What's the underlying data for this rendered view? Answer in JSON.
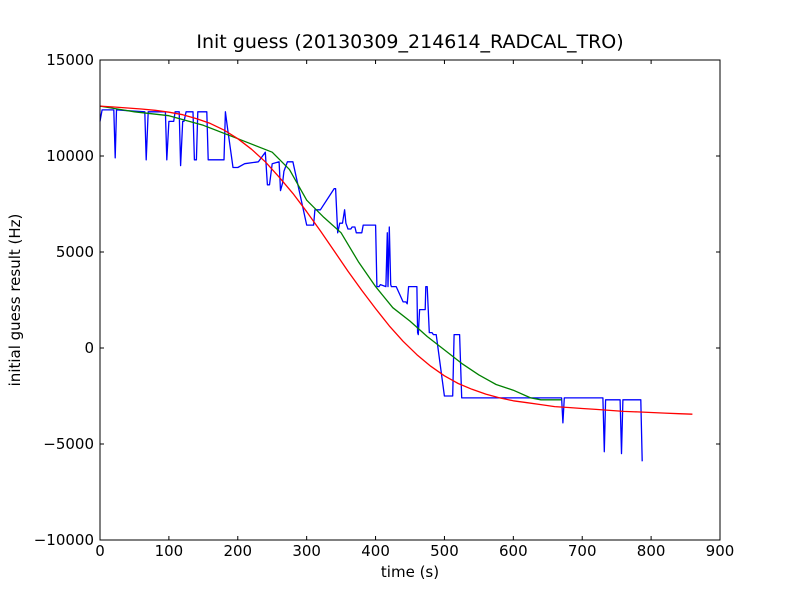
{
  "chart_data": {
    "type": "line",
    "title": "Init guess (20130309_214614_RADCAL_TRO)",
    "xlabel": "time (s)",
    "ylabel": "initial guess result (Hz)",
    "xlim": [
      0,
      900
    ],
    "ylim": [
      -10000,
      15000
    ],
    "x_ticks": [
      0,
      100,
      200,
      300,
      400,
      500,
      600,
      700,
      800,
      900
    ],
    "y_ticks": [
      -10000,
      -5000,
      0,
      5000,
      10000,
      15000
    ],
    "x_tick_labels": [
      "0",
      "100",
      "200",
      "300",
      "400",
      "500",
      "600",
      "700",
      "800",
      "900"
    ],
    "y_tick_labels": [
      "−10000",
      "−5000",
      "0",
      "5000",
      "10000",
      "15000"
    ],
    "grid": false,
    "legend": "none",
    "series": [
      {
        "color": "#0000ff",
        "x": [
          0,
          3,
          5,
          20,
          22,
          24,
          65,
          67,
          70,
          95,
          97,
          100,
          102,
          107,
          109,
          112,
          115,
          117,
          120,
          122,
          125,
          135,
          137,
          140,
          142,
          155,
          157,
          160,
          180,
          182,
          185,
          193,
          200,
          210,
          230,
          240,
          243,
          246,
          250,
          260,
          262,
          265,
          267,
          270,
          272,
          275,
          278,
          280,
          300,
          302,
          310,
          312,
          320,
          340,
          342,
          345,
          348,
          350,
          352,
          355,
          357,
          360,
          362,
          364,
          366,
          370,
          372,
          380,
          382,
          400,
          402,
          405,
          407,
          415,
          417,
          418,
          420,
          422,
          423,
          425,
          428,
          430,
          440,
          442,
          444,
          446,
          448,
          450,
          451,
          460,
          461,
          462,
          464,
          466,
          470,
          472,
          473,
          475,
          478,
          479,
          480,
          482,
          484,
          485,
          486,
          488,
          500,
          504,
          512,
          514,
          516,
          522,
          525,
          530,
          560,
          580,
          640,
          660,
          670,
          672,
          674,
          730,
          732,
          734,
          735,
          745,
          755,
          757,
          759,
          785,
          787
        ],
        "y": [
          11800,
          12400,
          12400,
          12400,
          9900,
          12400,
          12300,
          9800,
          12300,
          12300,
          9800,
          11800,
          11800,
          11800,
          12300,
          12300,
          12300,
          9500,
          11800,
          11800,
          12300,
          12300,
          9800,
          9800,
          12300,
          12300,
          9800,
          9800,
          9800,
          12300,
          11500,
          9400,
          9400,
          9600,
          9700,
          10200,
          8500,
          8500,
          9600,
          9700,
          8200,
          8600,
          9200,
          9500,
          9700,
          9700,
          9700,
          9700,
          6400,
          6400,
          6400,
          7200,
          7200,
          8300,
          8300,
          6000,
          6500,
          6500,
          6500,
          7200,
          6500,
          6200,
          6200,
          6200,
          6300,
          6300,
          6000,
          6000,
          6400,
          6400,
          3200,
          3200,
          3300,
          3200,
          6000,
          3200,
          6300,
          3300,
          3200,
          3200,
          3200,
          3200,
          2400,
          2400,
          2400,
          2300,
          3200,
          3200,
          3200,
          3200,
          800,
          700,
          2000,
          2000,
          2000,
          2000,
          3200,
          3200,
          800,
          800,
          800,
          800,
          700,
          700,
          700,
          700,
          -2500,
          -2500,
          -2500,
          700,
          700,
          700,
          -2600,
          -2600,
          -2600,
          -2600,
          -2600,
          -2600,
          -2600,
          -3900,
          -2600,
          -2600,
          -5400,
          -2700,
          -2700,
          -2700,
          -2700,
          -5500,
          -2700,
          -2700,
          -5900
        ]
      },
      {
        "color": "#008000",
        "x": [
          0,
          50,
          100,
          150,
          200,
          250,
          275,
          300,
          325,
          350,
          375,
          400,
          425,
          450,
          475,
          500,
          525,
          550,
          575,
          600,
          625,
          640,
          670
        ],
        "y": [
          12600,
          12300,
          12100,
          11600,
          10900,
          10200,
          9300,
          7700,
          6800,
          6000,
          4500,
          3200,
          2100,
          1400,
          600,
          -100,
          -800,
          -1400,
          -1900,
          -2200,
          -2600,
          -2700,
          -2700
        ]
      },
      {
        "color": "#ff0000",
        "x": [
          0,
          20,
          40,
          60,
          80,
          100,
          120,
          140,
          160,
          180,
          200,
          220,
          240,
          260,
          280,
          300,
          320,
          340,
          360,
          380,
          400,
          420,
          440,
          460,
          480,
          500,
          520,
          540,
          560,
          580,
          600,
          620,
          640,
          660,
          680,
          700,
          720,
          740,
          760,
          780,
          800,
          820,
          840,
          860
        ],
        "y": [
          12600,
          12550,
          12500,
          12450,
          12380,
          12280,
          12150,
          11950,
          11700,
          11350,
          10900,
          10350,
          9700,
          8900,
          8050,
          7100,
          6100,
          5050,
          4000,
          3000,
          2050,
          1150,
          350,
          -350,
          -950,
          -1450,
          -1850,
          -2150,
          -2400,
          -2600,
          -2750,
          -2850,
          -2950,
          -3050,
          -3100,
          -3150,
          -3200,
          -3250,
          -3300,
          -3330,
          -3360,
          -3390,
          -3420,
          -3450
        ]
      }
    ]
  }
}
